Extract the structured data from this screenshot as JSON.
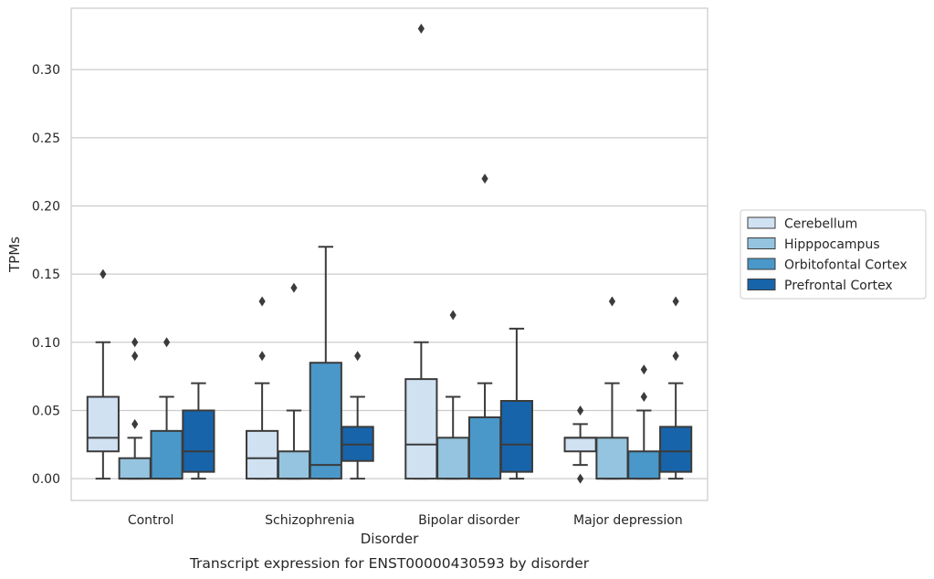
{
  "chart_data": {
    "type": "box",
    "caption": "Transcript expression for ENST00000430593 by disorder",
    "xlabel": "Disorder",
    "ylabel": "TPMs",
    "ylim": [
      -0.016,
      0.345
    ],
    "yticks": [
      0.0,
      0.05,
      0.1,
      0.15,
      0.2,
      0.25,
      0.3
    ],
    "ytick_labels": [
      "0.00",
      "0.05",
      "0.10",
      "0.15",
      "0.20",
      "0.25",
      "0.30"
    ],
    "grid": "y",
    "legend_position": "right",
    "categories": [
      "Control",
      "Schizophrenia",
      "Bipolar disorder",
      "Major depression"
    ],
    "series": [
      {
        "name": "Cerebellum",
        "color": "#d0e1f2",
        "boxes": [
          {
            "q1": 0.02,
            "median": 0.03,
            "q3": 0.06,
            "whisker_low": 0.0,
            "whisker_high": 0.1,
            "outliers": [
              0.15
            ]
          },
          {
            "q1": 0.0,
            "median": 0.015,
            "q3": 0.035,
            "whisker_low": 0.0,
            "whisker_high": 0.07,
            "outliers": [
              0.09,
              0.13
            ]
          },
          {
            "q1": 0.0,
            "median": 0.025,
            "q3": 0.073,
            "whisker_low": 0.0,
            "whisker_high": 0.1,
            "outliers": [
              0.33
            ]
          },
          {
            "q1": 0.02,
            "median": 0.03,
            "q3": 0.03,
            "whisker_low": 0.01,
            "whisker_high": 0.04,
            "outliers": [
              0.0,
              0.05
            ]
          }
        ]
      },
      {
        "name": "Hipppocampus",
        "color": "#94c4df",
        "boxes": [
          {
            "q1": 0.0,
            "median": 0.0,
            "q3": 0.015,
            "whisker_low": 0.0,
            "whisker_high": 0.03,
            "outliers": [
              0.04,
              0.09,
              0.1
            ]
          },
          {
            "q1": 0.0,
            "median": 0.0,
            "q3": 0.02,
            "whisker_low": 0.0,
            "whisker_high": 0.05,
            "outliers": [
              0.14
            ]
          },
          {
            "q1": 0.0,
            "median": 0.0,
            "q3": 0.03,
            "whisker_low": 0.0,
            "whisker_high": 0.06,
            "outliers": [
              0.12
            ]
          },
          {
            "q1": 0.0,
            "median": 0.0,
            "q3": 0.03,
            "whisker_low": 0.0,
            "whisker_high": 0.07,
            "outliers": [
              0.13
            ]
          }
        ]
      },
      {
        "name": "Orbitofontal Cortex",
        "color": "#4a98c9",
        "boxes": [
          {
            "q1": 0.0,
            "median": 0.0,
            "q3": 0.035,
            "whisker_low": 0.0,
            "whisker_high": 0.06,
            "outliers": [
              0.1
            ]
          },
          {
            "q1": 0.0,
            "median": 0.01,
            "q3": 0.085,
            "whisker_low": 0.0,
            "whisker_high": 0.17,
            "outliers": []
          },
          {
            "q1": 0.0,
            "median": 0.0,
            "q3": 0.045,
            "whisker_low": 0.0,
            "whisker_high": 0.07,
            "outliers": [
              0.22
            ]
          },
          {
            "q1": 0.0,
            "median": 0.0,
            "q3": 0.02,
            "whisker_low": 0.0,
            "whisker_high": 0.05,
            "outliers": [
              0.06,
              0.08
            ]
          }
        ]
      },
      {
        "name": "Prefrontal Cortex",
        "color": "#1764ab",
        "boxes": [
          {
            "q1": 0.005,
            "median": 0.02,
            "q3": 0.05,
            "whisker_low": 0.0,
            "whisker_high": 0.07,
            "outliers": []
          },
          {
            "q1": 0.013,
            "median": 0.025,
            "q3": 0.038,
            "whisker_low": 0.0,
            "whisker_high": 0.06,
            "outliers": [
              0.09
            ]
          },
          {
            "q1": 0.005,
            "median": 0.025,
            "q3": 0.057,
            "whisker_low": 0.0,
            "whisker_high": 0.11,
            "outliers": []
          },
          {
            "q1": 0.005,
            "median": 0.02,
            "q3": 0.038,
            "whisker_low": 0.0,
            "whisker_high": 0.07,
            "outliers": [
              0.09,
              0.13
            ]
          }
        ]
      }
    ]
  }
}
